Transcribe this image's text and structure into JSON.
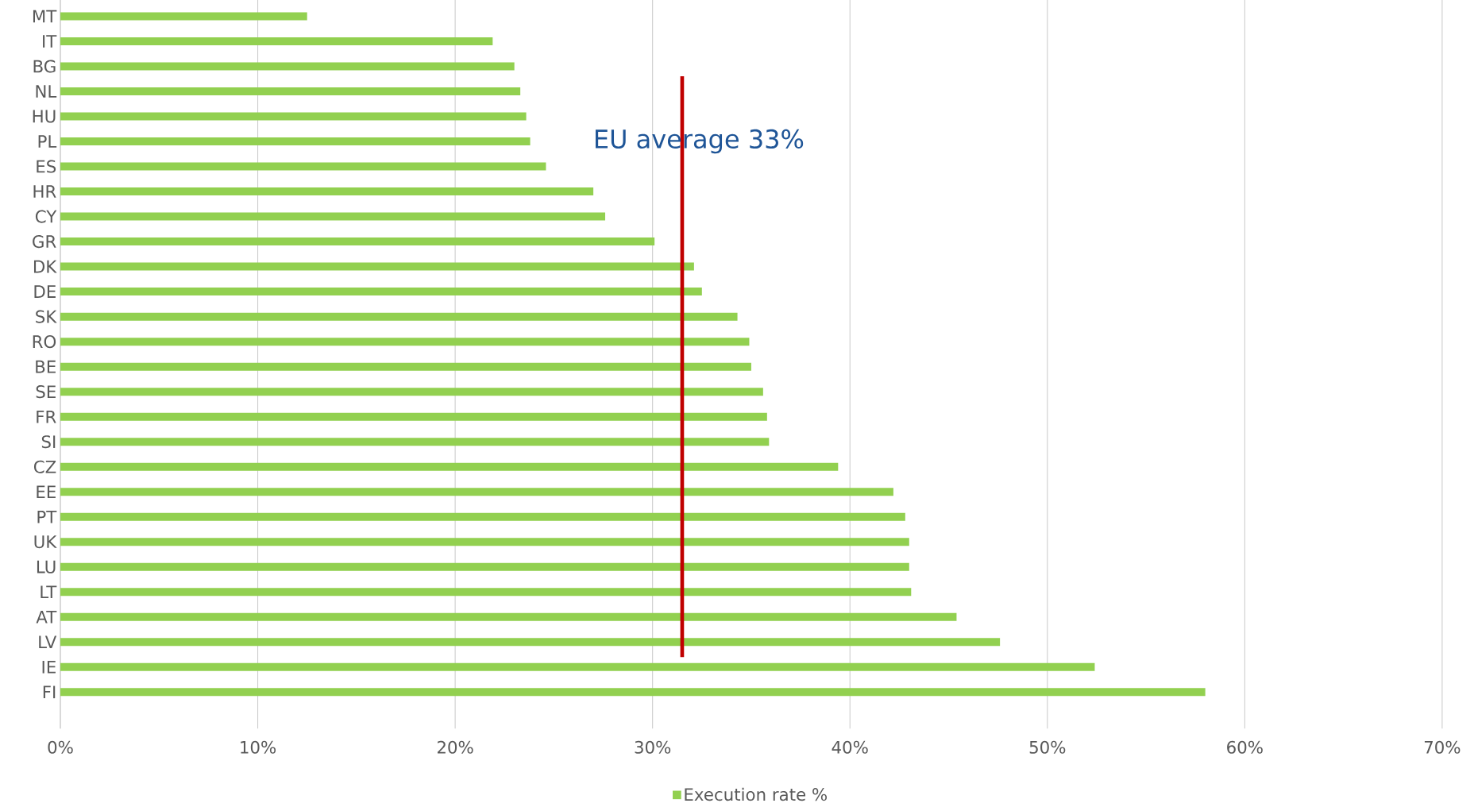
{
  "chart_data": {
    "type": "bar",
    "orientation": "horizontal",
    "categories": [
      "MT",
      "IT",
      "BG",
      "NL",
      "HU",
      "PL",
      "ES",
      "HR",
      "CY",
      "GR",
      "DK",
      "DE",
      "SK",
      "RO",
      "BE",
      "SE",
      "FR",
      "SI",
      "CZ",
      "EE",
      "PT",
      "UK",
      "LU",
      "LT",
      "AT",
      "LV",
      "IE",
      "FI"
    ],
    "series": [
      {
        "name": "Execution rate %",
        "color": "#92d050",
        "values": [
          12.5,
          21.9,
          23.0,
          23.3,
          23.6,
          23.8,
          24.6,
          27.0,
          27.6,
          30.1,
          32.1,
          32.5,
          34.3,
          34.9,
          35.0,
          35.6,
          35.8,
          35.9,
          39.4,
          42.2,
          42.8,
          43.0,
          43.0,
          43.1,
          45.4,
          47.6,
          52.4,
          58.0
        ]
      }
    ],
    "xlim": [
      0,
      70
    ],
    "xticks": [
      {
        "value": 0,
        "label": "0%"
      },
      {
        "value": 10,
        "label": "10%"
      },
      {
        "value": 20,
        "label": "20%"
      },
      {
        "value": 30,
        "label": "30%"
      },
      {
        "value": 40,
        "label": "40%"
      },
      {
        "value": 50,
        "label": "50%"
      },
      {
        "value": 60,
        "label": "60%"
      },
      {
        "value": 70,
        "label": "70%"
      }
    ],
    "ref_lines": [
      {
        "axis": "x",
        "value": 31.5,
        "label": "EU average 33%",
        "color": "#c00000"
      }
    ],
    "grid": "x",
    "legend": "bottom"
  }
}
